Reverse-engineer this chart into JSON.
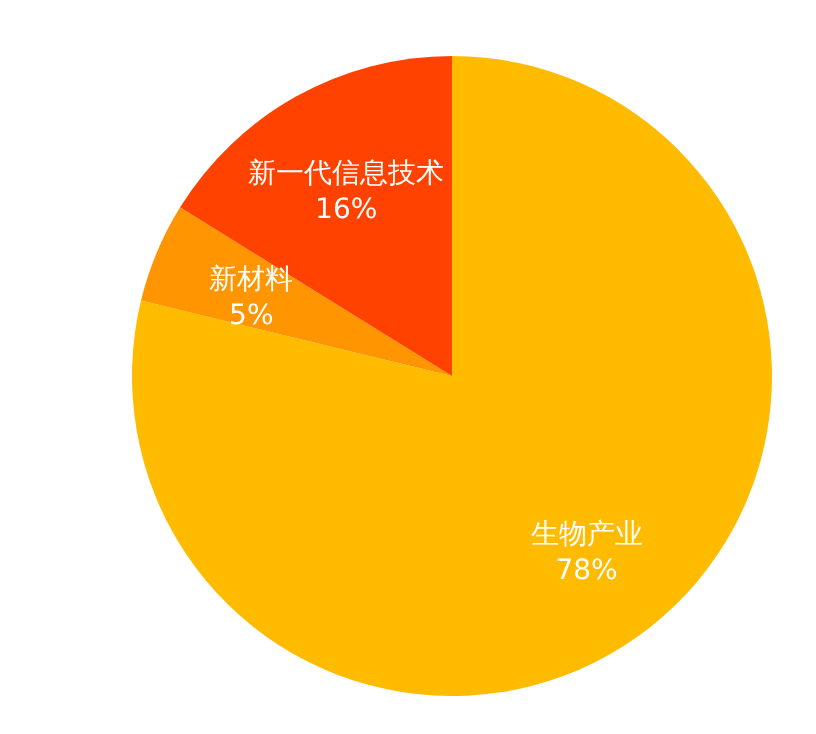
{
  "chart_data": {
    "type": "pie",
    "categories": [
      "生物产业",
      "新材料",
      "新一代信息技术"
    ],
    "values": [
      78,
      5,
      16
    ],
    "value_labels": [
      "78%",
      "5%",
      "16%"
    ],
    "colors": [
      "#ffbb00",
      "#ff9500",
      "#ff4200"
    ]
  }
}
